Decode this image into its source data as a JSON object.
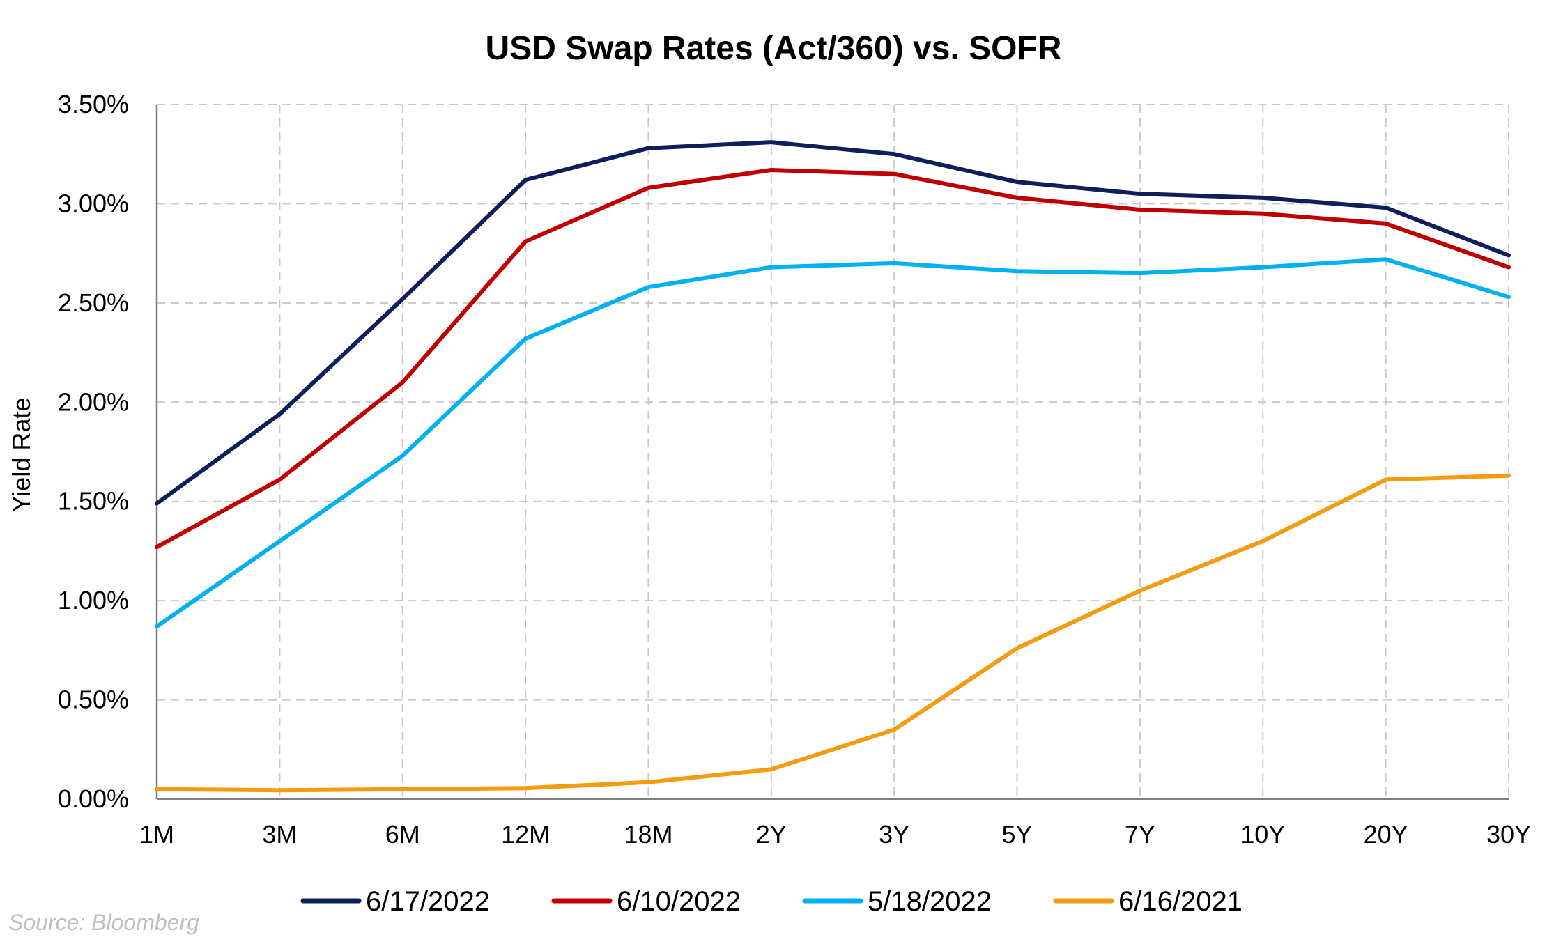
{
  "chart_data": {
    "type": "line",
    "title": "USD Swap Rates (Act/360) vs. SOFR",
    "xlabel": "",
    "ylabel": "Yield Rate",
    "categories": [
      "1M",
      "3M",
      "6M",
      "12M",
      "18M",
      "2Y",
      "3Y",
      "5Y",
      "7Y",
      "10Y",
      "20Y",
      "30Y"
    ],
    "ylim": [
      0,
      3.5
    ],
    "yticks": [
      0.0,
      0.5,
      1.0,
      1.5,
      2.0,
      2.5,
      3.0,
      3.5
    ],
    "ytick_labels": [
      "0.00%",
      "0.50%",
      "1.00%",
      "1.50%",
      "2.00%",
      "2.50%",
      "3.00%",
      "3.50%"
    ],
    "grid": true,
    "legend_position": "bottom",
    "series": [
      {
        "name": "6/17/2022",
        "color": "#0e1f5b",
        "values": [
          1.49,
          1.94,
          2.52,
          3.12,
          3.28,
          3.31,
          3.25,
          3.11,
          3.05,
          3.03,
          2.98,
          2.74
        ]
      },
      {
        "name": "6/10/2022",
        "color": "#c00000",
        "values": [
          1.27,
          1.61,
          2.1,
          2.81,
          3.08,
          3.17,
          3.15,
          3.03,
          2.97,
          2.95,
          2.9,
          2.68
        ]
      },
      {
        "name": "5/18/2022",
        "color": "#00b0f0",
        "values": [
          0.87,
          1.3,
          1.73,
          2.32,
          2.58,
          2.68,
          2.7,
          2.66,
          2.65,
          2.68,
          2.72,
          2.53
        ]
      },
      {
        "name": "6/16/2021",
        "color": "#f39c12",
        "values": [
          0.05,
          0.045,
          0.05,
          0.055,
          0.085,
          0.15,
          0.35,
          0.76,
          1.05,
          1.3,
          1.61,
          1.63
        ]
      }
    ]
  },
  "source": "Source: Bloomberg"
}
